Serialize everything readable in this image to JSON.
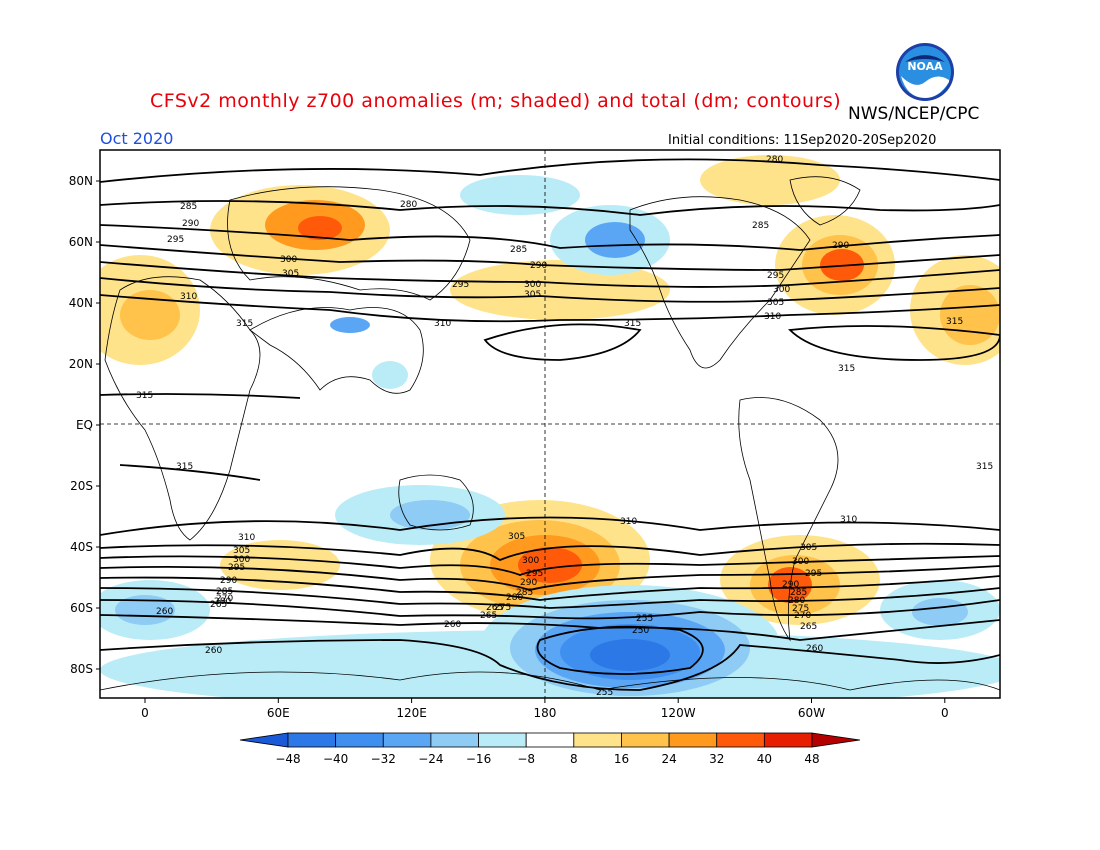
{
  "header": {
    "title": "CFSv2 monthly z700 anomalies (m; shaded) and total (dm; contours)",
    "agency": "NWS/NCEP/CPC",
    "period": "Oct 2020",
    "initial_conditions": "Initial conditions: 11Sep2020-20Sep2020",
    "logo_text": "NOAA"
  },
  "axes": {
    "lat_labels": [
      "80N",
      "60N",
      "40N",
      "20N",
      "EQ",
      "20S",
      "40S",
      "60S",
      "80S"
    ],
    "lon_labels": [
      "0",
      "60E",
      "120E",
      "180",
      "120W",
      "60W",
      "0"
    ]
  },
  "colorbar": {
    "labels": [
      "-48",
      "-40",
      "-32",
      "-24",
      "-16",
      "-8",
      "8",
      "16",
      "24",
      "32",
      "40",
      "48"
    ],
    "colors": [
      "#1a5ad9",
      "#2b78e6",
      "#3f8ff0",
      "#5aa6f5",
      "#8ecbf5",
      "#b9ecf7",
      "#ffffff",
      "#ffe38a",
      "#ffc24a",
      "#ff9a1f",
      "#ff5a0a",
      "#e81e00",
      "#b40000"
    ]
  },
  "contour_labels": [
    "280",
    "285",
    "290",
    "295",
    "300",
    "305",
    "310",
    "315",
    "260",
    "255",
    "250",
    "265",
    "270",
    "275"
  ]
}
